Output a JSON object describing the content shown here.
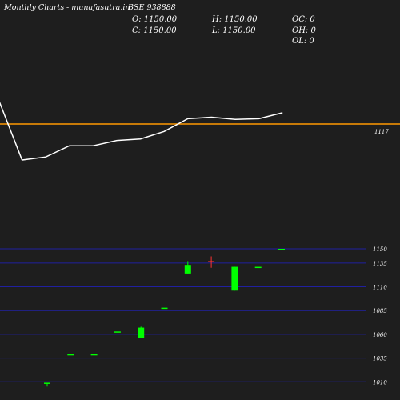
{
  "header": {
    "title": "Monthly Charts",
    "site": "- munafasutra.in",
    "symbol": "BSE 938888"
  },
  "ohlc": {
    "open": "O: 1150.00",
    "high": "H: 1150.00",
    "oc": "OC: 0",
    "close": "C: 1150.00",
    "low": "L: 1150.00",
    "oh": "OH: 0",
    "ol": "OL: 0"
  },
  "colors": {
    "background": "#1e1e1e",
    "line": "#ffffff",
    "reference": "#ff9900",
    "grid": "#2020a0",
    "up": "#00ff00",
    "down": "#ff3333"
  },
  "chart_data": [
    {
      "type": "line",
      "series": [
        {
          "values": [
            1150,
            1069,
            1073,
            1088,
            1088,
            1095,
            1097,
            1107,
            1124,
            1126,
            1123,
            1124,
            1132
          ]
        }
      ],
      "reference_line": {
        "value": 1117,
        "label": "1117"
      }
    },
    {
      "type": "candlestick",
      "yticks": [
        1150,
        1135,
        1110,
        1085,
        1060,
        1035,
        1010
      ],
      "ylim": [
        1006,
        1158
      ],
      "grid": true,
      "candles": [
        {
          "open": 1008,
          "high": 1009,
          "low": 1005,
          "close": 1009
        },
        {
          "open": 1039,
          "high": 1039,
          "low": 1039,
          "close": 1039
        },
        {
          "open": 1039,
          "high": 1039,
          "low": 1039,
          "close": 1039
        },
        {
          "open": 1063,
          "high": 1063,
          "low": 1063,
          "close": 1063
        },
        {
          "open": 1056,
          "high": 1068,
          "low": 1056,
          "close": 1067
        },
        {
          "open": 1088,
          "high": 1088,
          "low": 1088,
          "close": 1088
        },
        {
          "open": 1124,
          "high": 1137,
          "low": 1124,
          "close": 1133
        },
        {
          "open": 1137,
          "high": 1142,
          "low": 1130,
          "close": 1136
        },
        {
          "open": 1106,
          "high": 1131,
          "low": 1106,
          "close": 1131
        },
        {
          "open": 1131,
          "high": 1131,
          "low": 1131,
          "close": 1131
        },
        {
          "open": 1150,
          "high": 1150,
          "low": 1150,
          "close": 1150
        }
      ]
    }
  ]
}
